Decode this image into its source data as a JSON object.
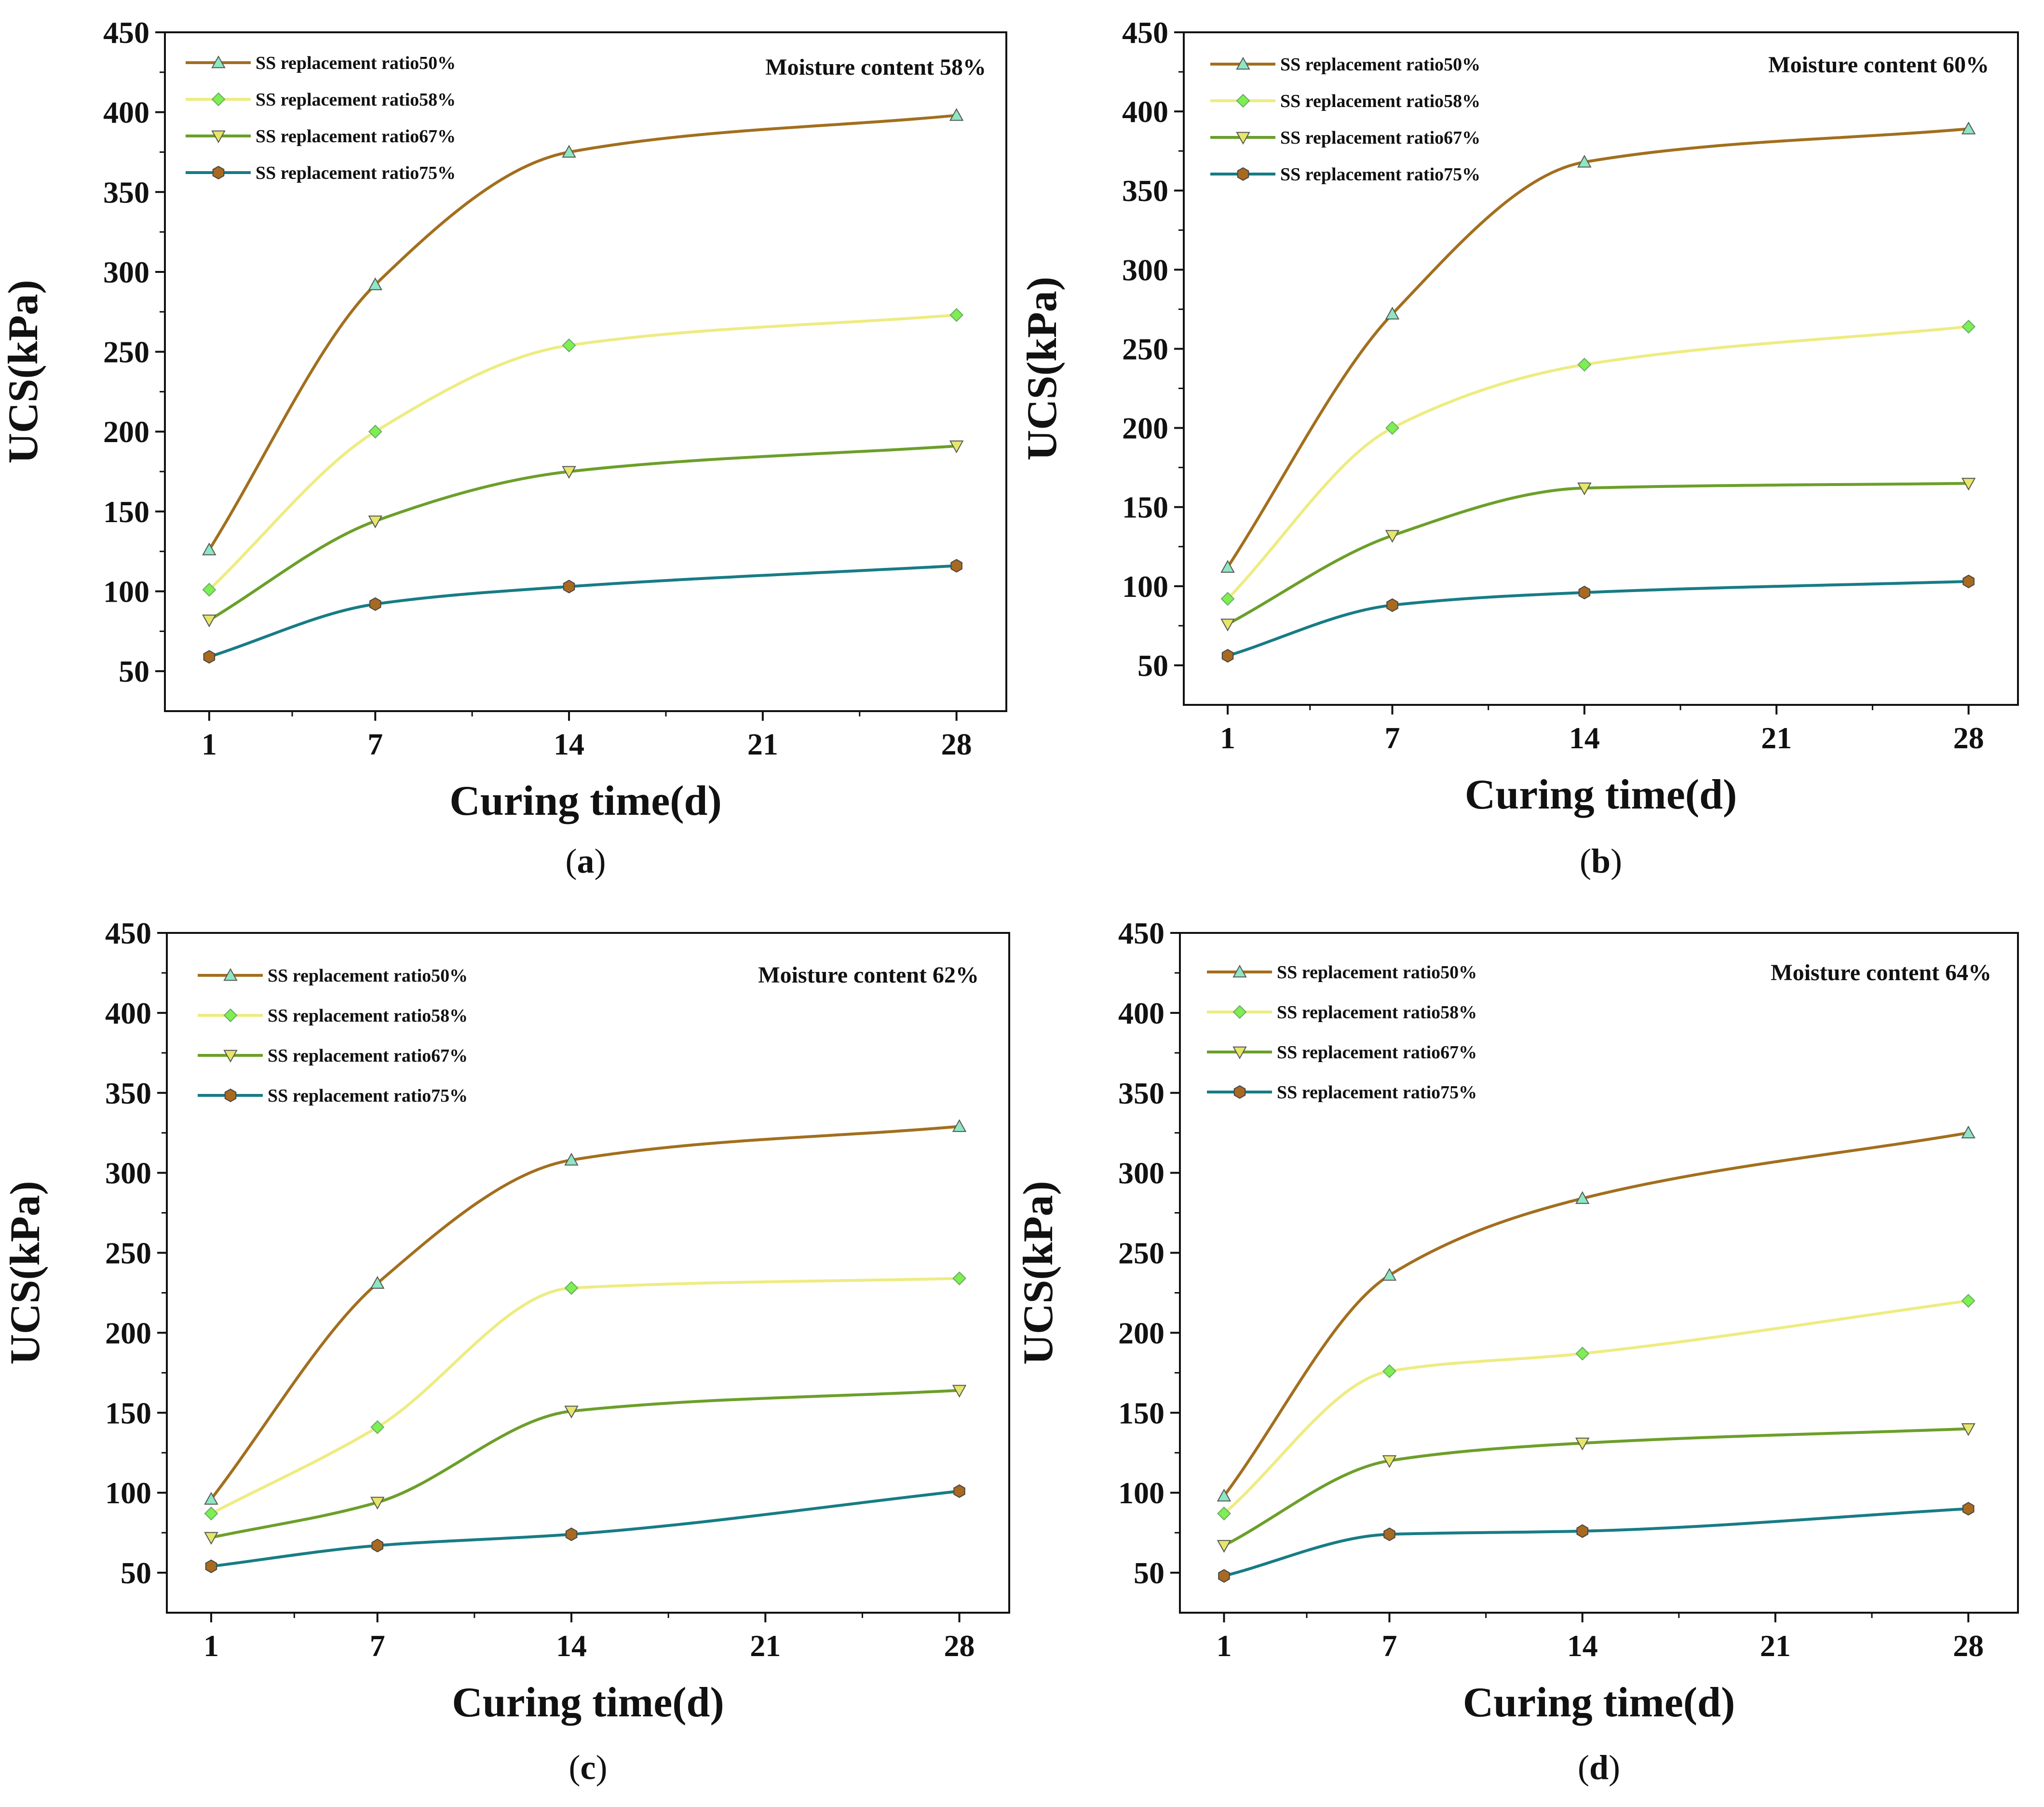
{
  "figure": {
    "colors": {
      "ss50": "#A26F1E",
      "ss58": "#EEEC82",
      "ss67": "#6C9F2A",
      "ss75": "#177C85",
      "marker50": "#8EE6C2",
      "marker58": "#7EEE52",
      "marker67": "#E6E66A",
      "marker75": "#A86A20",
      "axis": "#111111"
    }
  },
  "chart_data": [
    {
      "type": "line",
      "panel": "a",
      "caption_letter": "a",
      "title": "Moisture content 58%",
      "xlabel": "Curing time(d)",
      "ylabel": "UCS(kPa)",
      "xlim": [
        -0.6,
        29.8
      ],
      "ylim": [
        25,
        450
      ],
      "xticks": [
        1,
        7,
        14,
        21,
        28
      ],
      "xtick_labels": [
        "1",
        "7",
        "14",
        "21",
        "28"
      ],
      "yticks": [
        50,
        100,
        150,
        200,
        250,
        300,
        350,
        400,
        450
      ],
      "ytick_labels": [
        "50",
        "100",
        "150",
        "200",
        "250",
        "300",
        "350",
        "400",
        "450"
      ],
      "x": [
        1,
        7,
        14,
        28
      ],
      "legend_position": "top-left",
      "series": [
        {
          "name": "SS replacement ratio50%",
          "marker": "triangle-up",
          "values": [
            126,
            292,
            375,
            398
          ]
        },
        {
          "name": "SS replacement ratio58%",
          "marker": "diamond",
          "values": [
            101,
            200,
            254,
            273
          ]
        },
        {
          "name": "SS replacement ratio67%",
          "marker": "triangle-down",
          "values": [
            82,
            144,
            175,
            191
          ]
        },
        {
          "name": "SS replacement ratio75%",
          "marker": "hexagon",
          "values": [
            59,
            92,
            103,
            116
          ]
        }
      ]
    },
    {
      "type": "line",
      "panel": "b",
      "caption_letter": "b",
      "title": "Moisture content 60%",
      "xlabel": "Curing time(d)",
      "ylabel": "UCS(kPa)",
      "xlim": [
        -0.6,
        29.8
      ],
      "ylim": [
        25,
        450
      ],
      "xticks": [
        1,
        7,
        14,
        21,
        28
      ],
      "xtick_labels": [
        "1",
        "7",
        "14",
        "21",
        "28"
      ],
      "yticks": [
        50,
        100,
        150,
        200,
        250,
        300,
        350,
        400,
        450
      ],
      "ytick_labels": [
        "50",
        "100",
        "150",
        "200",
        "250",
        "300",
        "350",
        "400",
        "450"
      ],
      "x": [
        1,
        7,
        14,
        28
      ],
      "legend_position": "top-left",
      "series": [
        {
          "name": "SS replacement ratio50%",
          "marker": "triangle-up",
          "values": [
            112,
            272,
            368,
            389
          ]
        },
        {
          "name": "SS replacement ratio58%",
          "marker": "diamond",
          "values": [
            92,
            200,
            240,
            264
          ]
        },
        {
          "name": "SS replacement ratio67%",
          "marker": "triangle-down",
          "values": [
            76,
            132,
            162,
            165
          ]
        },
        {
          "name": "SS replacement ratio75%",
          "marker": "hexagon",
          "values": [
            56,
            88,
            96,
            103
          ]
        }
      ]
    },
    {
      "type": "line",
      "panel": "c",
      "caption_letter": "c",
      "title": "Moisture content 62%",
      "xlabel": "Curing time(d)",
      "ylabel": "UCS(kPa)",
      "xlim": [
        -0.6,
        29.8
      ],
      "ylim": [
        25,
        450
      ],
      "xticks": [
        1,
        7,
        14,
        21,
        28
      ],
      "xtick_labels": [
        "1",
        "7",
        "14",
        "21",
        "28"
      ],
      "yticks": [
        50,
        100,
        150,
        200,
        250,
        300,
        350,
        400,
        450
      ],
      "ytick_labels": [
        "50",
        "100",
        "150",
        "200",
        "250",
        "300",
        "350",
        "400",
        "450"
      ],
      "x": [
        1,
        7,
        14,
        28
      ],
      "legend_position": "top-left",
      "series": [
        {
          "name": "SS replacement ratio50%",
          "marker": "triangle-up",
          "values": [
            96,
            231,
            308,
            329
          ]
        },
        {
          "name": "SS replacement ratio58%",
          "marker": "diamond",
          "values": [
            87,
            141,
            228,
            234
          ]
        },
        {
          "name": "SS replacement ratio67%",
          "marker": "triangle-down",
          "values": [
            72,
            94,
            151,
            164
          ]
        },
        {
          "name": "SS replacement ratio75%",
          "marker": "hexagon",
          "values": [
            54,
            67,
            74,
            101
          ]
        }
      ]
    },
    {
      "type": "line",
      "panel": "d",
      "caption_letter": "d",
      "title": "Moisture content 64%",
      "xlabel": "Curing time(d)",
      "ylabel": "UCS(kPa)",
      "xlim": [
        -0.6,
        29.8
      ],
      "ylim": [
        25,
        450
      ],
      "xticks": [
        1,
        7,
        14,
        21,
        28
      ],
      "xtick_labels": [
        "1",
        "7",
        "14",
        "21",
        "28"
      ],
      "yticks": [
        50,
        100,
        150,
        200,
        250,
        300,
        350,
        400,
        450
      ],
      "ytick_labels": [
        "50",
        "100",
        "150",
        "200",
        "250",
        "300",
        "350",
        "400",
        "450"
      ],
      "x": [
        1,
        7,
        14,
        28
      ],
      "legend_position": "top-left",
      "series": [
        {
          "name": "SS replacement ratio50%",
          "marker": "triangle-up",
          "values": [
            98,
            236,
            284,
            325
          ]
        },
        {
          "name": "SS replacement ratio58%",
          "marker": "diamond",
          "values": [
            87,
            176,
            187,
            220
          ]
        },
        {
          "name": "SS replacement ratio67%",
          "marker": "triangle-down",
          "values": [
            67,
            120,
            131,
            140
          ]
        },
        {
          "name": "SS replacement ratio75%",
          "marker": "hexagon",
          "values": [
            48,
            74,
            76,
            90
          ]
        }
      ]
    }
  ]
}
